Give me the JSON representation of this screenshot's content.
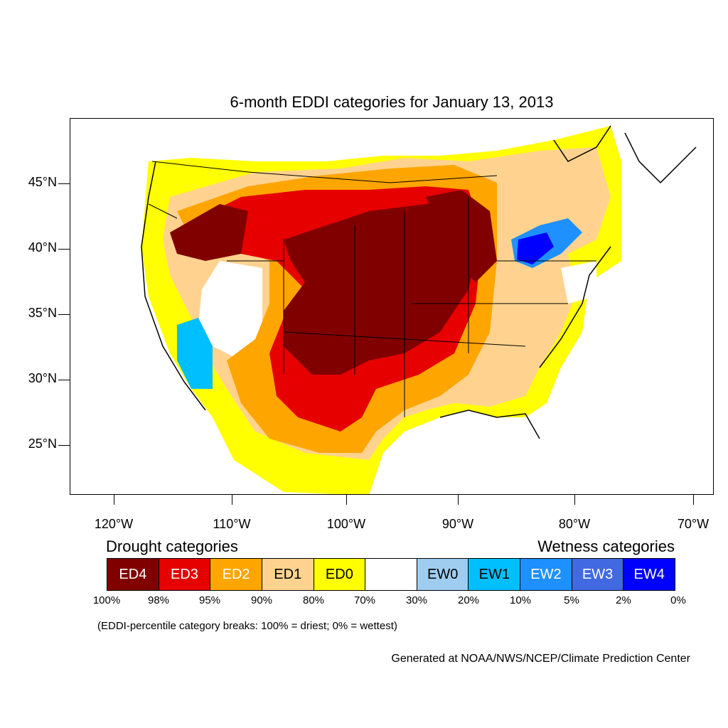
{
  "title": "6-month EDDI categories for January 13, 2013",
  "axes": {
    "lat_labels": [
      "45°N",
      "40°N",
      "35°N",
      "30°N",
      "25°N"
    ],
    "lon_labels": [
      "120°W",
      "110°W",
      "100°W",
      "90°W",
      "80°W",
      "70°W"
    ]
  },
  "legend": {
    "drought_label": "Drought categories",
    "wetness_label": "Wetness categories",
    "categories": [
      {
        "label": "ED4",
        "color": "#800000",
        "text_color": "#ffffff"
      },
      {
        "label": "ED3",
        "color": "#e60000",
        "text_color": "#ffffff"
      },
      {
        "label": "ED2",
        "color": "#ffa500",
        "text_color": "#ffffff"
      },
      {
        "label": "ED1",
        "color": "#ffd38f",
        "text_color": "#000000"
      },
      {
        "label": "ED0",
        "color": "#ffff00",
        "text_color": "#000000"
      },
      {
        "label": "",
        "color": "#ffffff",
        "text_color": "#000000"
      },
      {
        "label": "EW0",
        "color": "#9ecdf0",
        "text_color": "#000000"
      },
      {
        "label": "EW1",
        "color": "#00bfff",
        "text_color": "#000000"
      },
      {
        "label": "EW2",
        "color": "#1e90ff",
        "text_color": "#ffffff"
      },
      {
        "label": "EW3",
        "color": "#4169e1",
        "text_color": "#ffffff"
      },
      {
        "label": "EW4",
        "color": "#0000ff",
        "text_color": "#ffffff"
      }
    ],
    "breaks": [
      "100%",
      "98%",
      "95%",
      "90%",
      "80%",
      "70%",
      "30%",
      "20%",
      "10%",
      "5%",
      "2%",
      "0%"
    ]
  },
  "note": "(EDDI-percentile category breaks: 100% = driest; 0% = wettest)",
  "credit": "Generated at NOAA/NWS/NCEP/Climate Prediction Center"
}
